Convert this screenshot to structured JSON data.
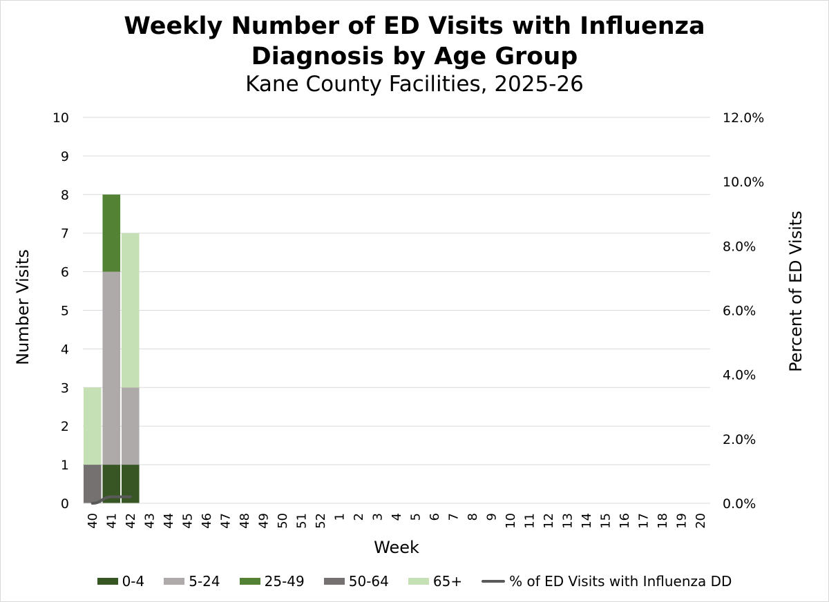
{
  "chart_data": {
    "type": "bar",
    "stacked": true,
    "title_line1": "Weekly Number of ED Visits with Influenza",
    "title_line2": "Diagnosis by Age Group",
    "subtitle": "Kane County Facilities, 2025-26",
    "xlabel": "Week",
    "ylabel": "Number Visits",
    "y2label": "Percent of ED Visits",
    "ylim": [
      0,
      10
    ],
    "y2lim": [
      0,
      12
    ],
    "y_ticks": [
      "0",
      "1",
      "2",
      "3",
      "4",
      "5",
      "6",
      "7",
      "8",
      "9",
      "10"
    ],
    "y2_ticks": [
      "0.0%",
      "2.0%",
      "4.0%",
      "6.0%",
      "8.0%",
      "10.0%",
      "12.0%"
    ],
    "grid": true,
    "legend_position": "bottom",
    "categories": [
      "40",
      "41",
      "42",
      "43",
      "44",
      "45",
      "46",
      "47",
      "48",
      "49",
      "50",
      "51",
      "52",
      "1",
      "2",
      "3",
      "4",
      "5",
      "6",
      "7",
      "8",
      "9",
      "10",
      "11",
      "12",
      "13",
      "14",
      "15",
      "16",
      "17",
      "18",
      "19",
      "20"
    ],
    "series": [
      {
        "name": "0-4",
        "color": "#375623",
        "values": [
          0,
          1,
          1,
          0,
          0,
          0,
          0,
          0,
          0,
          0,
          0,
          0,
          0,
          0,
          0,
          0,
          0,
          0,
          0,
          0,
          0,
          0,
          0,
          0,
          0,
          0,
          0,
          0,
          0,
          0,
          0,
          0,
          0
        ]
      },
      {
        "name": "5-24",
        "color": "#aeaaaa",
        "values": [
          0,
          5,
          2,
          0,
          0,
          0,
          0,
          0,
          0,
          0,
          0,
          0,
          0,
          0,
          0,
          0,
          0,
          0,
          0,
          0,
          0,
          0,
          0,
          0,
          0,
          0,
          0,
          0,
          0,
          0,
          0,
          0,
          0
        ]
      },
      {
        "name": "25-49",
        "color": "#548235",
        "values": [
          0,
          2,
          0,
          0,
          0,
          0,
          0,
          0,
          0,
          0,
          0,
          0,
          0,
          0,
          0,
          0,
          0,
          0,
          0,
          0,
          0,
          0,
          0,
          0,
          0,
          0,
          0,
          0,
          0,
          0,
          0,
          0,
          0
        ]
      },
      {
        "name": "50-64",
        "color": "#767171",
        "values": [
          1,
          0,
          0,
          0,
          0,
          0,
          0,
          0,
          0,
          0,
          0,
          0,
          0,
          0,
          0,
          0,
          0,
          0,
          0,
          0,
          0,
          0,
          0,
          0,
          0,
          0,
          0,
          0,
          0,
          0,
          0,
          0,
          0
        ]
      },
      {
        "name": "65+",
        "color": "#c5e0b4",
        "values": [
          2,
          0,
          4,
          0,
          0,
          0,
          0,
          0,
          0,
          0,
          0,
          0,
          0,
          0,
          0,
          0,
          0,
          0,
          0,
          0,
          0,
          0,
          0,
          0,
          0,
          0,
          0,
          0,
          0,
          0,
          0,
          0,
          0
        ]
      }
    ],
    "line_series": {
      "name": "% of ED Visits with Influenza DD",
      "color": "#595959",
      "axis": "secondary",
      "values": [
        0.0,
        0.2,
        0.2
      ]
    }
  }
}
